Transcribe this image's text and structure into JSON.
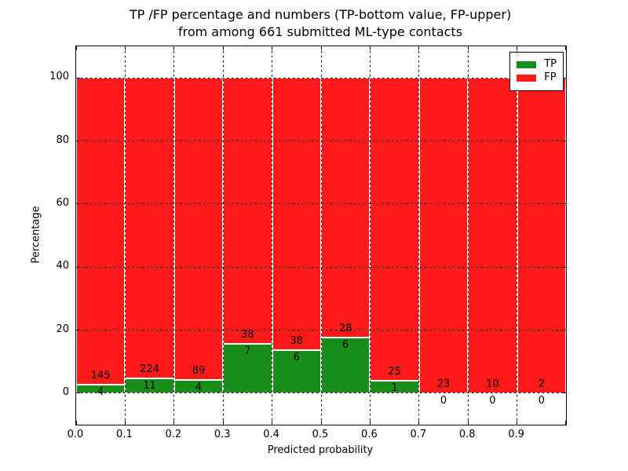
{
  "title": {
    "line1": "TP /FP percentage and numbers (TP-bottom value, FP-upper)",
    "line2": "from among 661 submitted ML-type contacts"
  },
  "chart_data": {
    "type": "bar",
    "stacked": true,
    "title": "TP /FP percentage and numbers (TP-bottom value, FP-upper) from among 661 submitted ML-type contacts",
    "xlabel": "Predicted probability",
    "ylabel": "Percentage",
    "total_contacts": 661,
    "bin_edges": [
      0.0,
      0.1,
      0.2,
      0.3,
      0.4,
      0.5,
      0.6,
      0.7,
      0.8,
      0.9,
      1.0
    ],
    "bin_width": 0.1,
    "series": [
      {
        "name": "TP",
        "color": "#198c19",
        "counts": [
          4,
          11,
          4,
          7,
          6,
          6,
          1,
          0,
          0,
          0
        ]
      },
      {
        "name": "FP",
        "color": "#ff1a1a",
        "counts": [
          145,
          224,
          89,
          38,
          38,
          28,
          25,
          23,
          10,
          2
        ]
      }
    ],
    "tp_percentages": [
      2.68,
      4.68,
      4.3,
      15.56,
      13.64,
      17.65,
      3.85,
      0.0,
      0.0,
      0.0
    ],
    "fp_percentages": [
      97.32,
      95.32,
      95.7,
      84.44,
      86.36,
      82.35,
      96.15,
      100.0,
      100.0,
      100.0
    ],
    "x_tick_labels": [
      "0.0",
      "0.1",
      "0.2",
      "0.3",
      "0.4",
      "0.5",
      "0.6",
      "0.7",
      "0.8",
      "0.9"
    ],
    "y_ticks": [
      0,
      20,
      40,
      60,
      80,
      100
    ],
    "y_tick_labels": [
      "0",
      "20",
      "40",
      "60",
      "80",
      "100"
    ],
    "xlim": [
      0.0,
      1.0
    ],
    "ylim": [
      -10,
      110
    ],
    "grid": {
      "visible": true,
      "style": "dotted",
      "color": "#000000"
    },
    "bar_edge_color": "#ffffff",
    "legend": {
      "position": "upper right",
      "entries": [
        {
          "label": "TP",
          "color": "#198c19"
        },
        {
          "label": "FP",
          "color": "#ff1a1a"
        }
      ]
    }
  }
}
